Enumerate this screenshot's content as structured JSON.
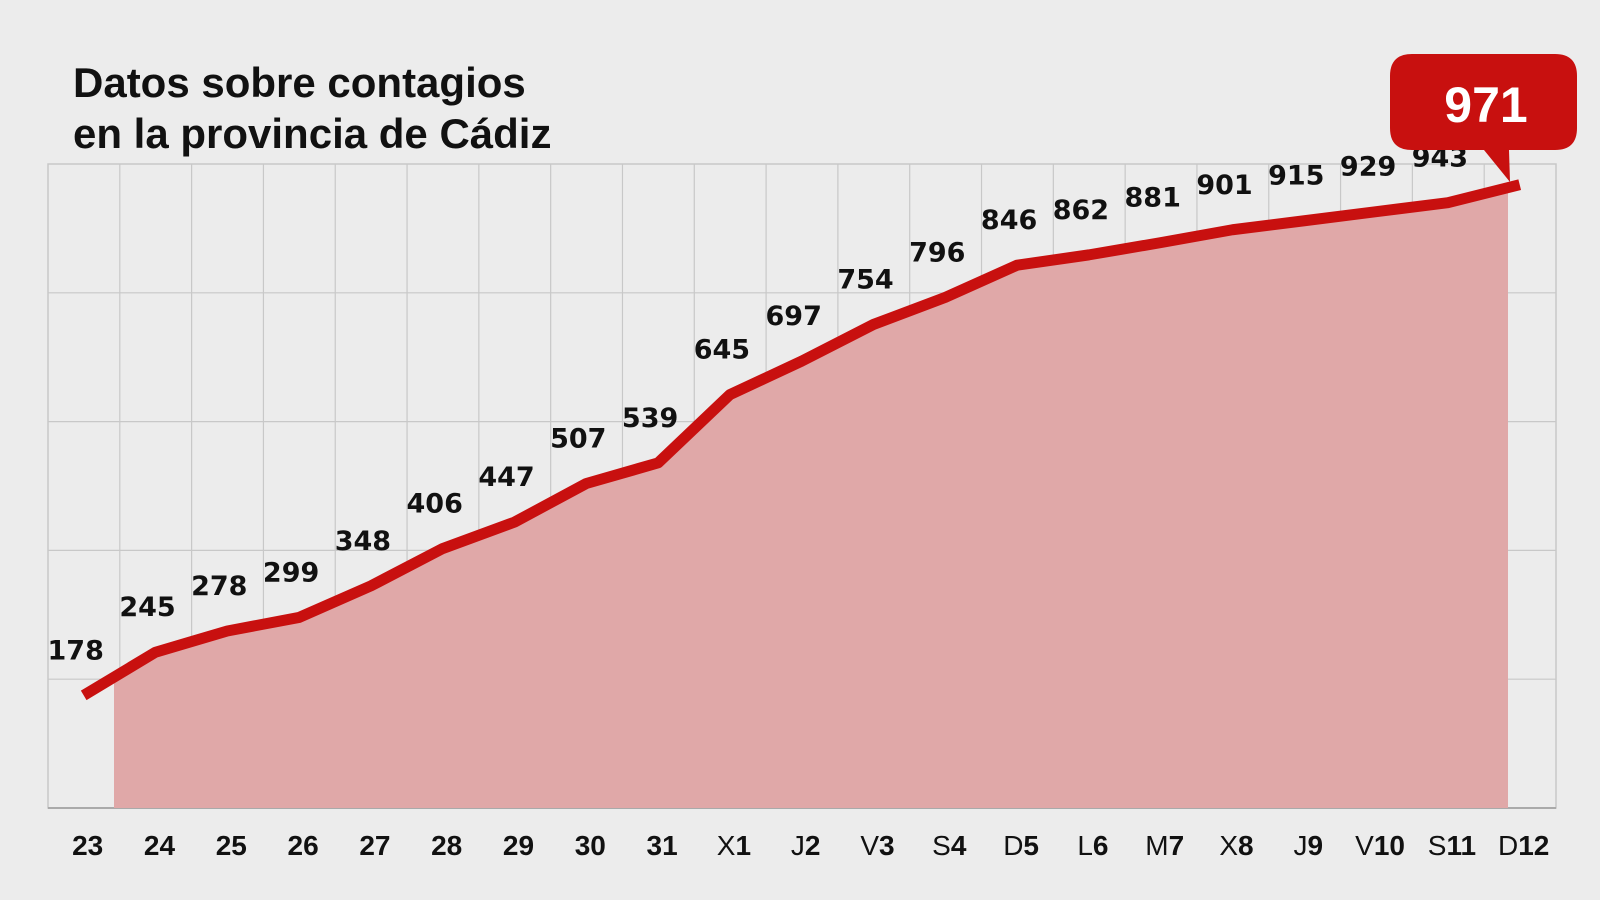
{
  "chart_data": {
    "type": "area",
    "title": [
      "Datos sobre contagios",
      "en la provincia de Cádiz"
    ],
    "categories": [
      {
        "prefix": "",
        "day": "23"
      },
      {
        "prefix": "",
        "day": "24"
      },
      {
        "prefix": "",
        "day": "25"
      },
      {
        "prefix": "",
        "day": "26"
      },
      {
        "prefix": "",
        "day": "27"
      },
      {
        "prefix": "",
        "day": "28"
      },
      {
        "prefix": "",
        "day": "29"
      },
      {
        "prefix": "",
        "day": "30"
      },
      {
        "prefix": "",
        "day": "31"
      },
      {
        "prefix": "X",
        "day": "1"
      },
      {
        "prefix": "J",
        "day": "2"
      },
      {
        "prefix": "V",
        "day": "3"
      },
      {
        "prefix": "S",
        "day": "4"
      },
      {
        "prefix": "D",
        "day": "5"
      },
      {
        "prefix": "L",
        "day": "6"
      },
      {
        "prefix": "M",
        "day": "7"
      },
      {
        "prefix": "X",
        "day": "8"
      },
      {
        "prefix": "J",
        "day": "9"
      },
      {
        "prefix": "V",
        "day": "10"
      },
      {
        "prefix": "S",
        "day": "11"
      },
      {
        "prefix": "D",
        "day": "12"
      }
    ],
    "values": [
      178,
      245,
      278,
      299,
      348,
      406,
      447,
      507,
      539,
      645,
      697,
      754,
      796,
      846,
      862,
      881,
      901,
      915,
      929,
      943,
      971
    ],
    "highlight": {
      "label": "971"
    },
    "ylim": [
      0,
      1000
    ],
    "ygrid_step": 200,
    "grid": true,
    "legend": "none",
    "colors": {
      "line": "#c8100f",
      "fill": "#e0a8a8",
      "callout": "#c8100f",
      "grid": "#c8c8c8",
      "background": "#ececec"
    }
  }
}
